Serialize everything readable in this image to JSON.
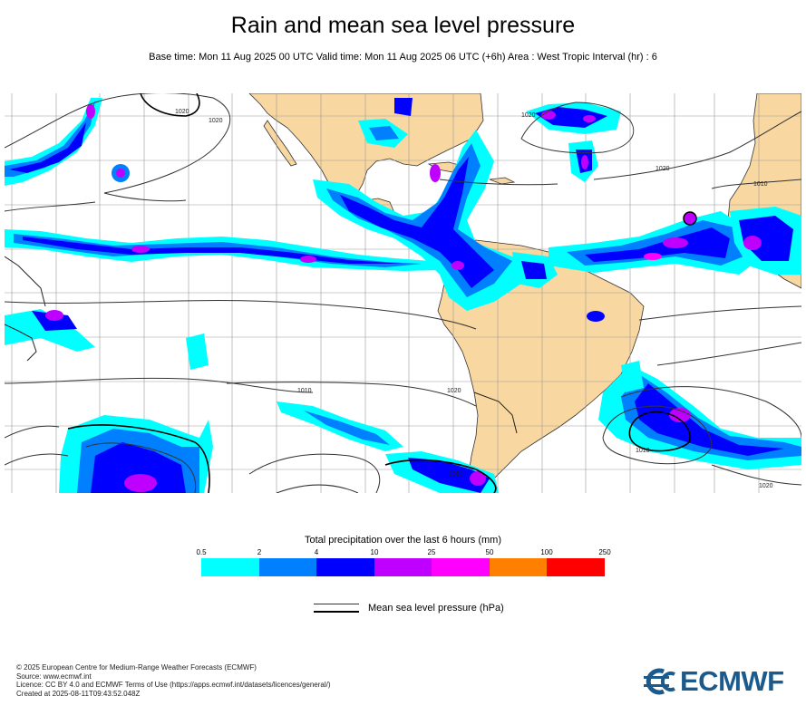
{
  "header": {
    "title": "Rain and mean sea level pressure",
    "subtitle": "Base time: Mon 11 Aug 2025 00 UTC Valid time: Mon 11 Aug 2025 06 UTC (+6h) Area : West Tropic Interval (hr) : 6"
  },
  "map": {
    "isobar_labels": [
      "1020",
      "1020",
      "1020",
      "1010",
      "1020",
      "1020",
      "1010",
      "1010",
      "1010",
      "1020"
    ],
    "colors": {
      "land": "#f9d7a0",
      "ocean": "#ffffff",
      "grid": "#999999",
      "isobar": "#333333"
    }
  },
  "legend": {
    "title": "Total precipitation over the last 6 hours (mm)",
    "ticks": [
      "0.5",
      "2",
      "4",
      "10",
      "25",
      "50",
      "100",
      "250"
    ],
    "colors": [
      "#00ffff",
      "#0080ff",
      "#0000ff",
      "#c000ff",
      "#ff00ff",
      "#ff8000",
      "#ff0000"
    ],
    "mslp_label": "Mean sea level pressure (hPa)"
  },
  "footer": {
    "lines": [
      "© 2025 European Centre for Medium-Range Weather Forecasts (ECMWF)",
      "Source: www.ecmwf.int",
      "Licence: CC BY 4.0 and ECMWF Terms of Use (https://apps.ecmwf.int/datasets/licences/general/)",
      "Created at 2025-08-11T09:43:52.048Z"
    ]
  },
  "logo": {
    "text": "ECMWF",
    "icon": "ecmwf-logo-icon"
  }
}
